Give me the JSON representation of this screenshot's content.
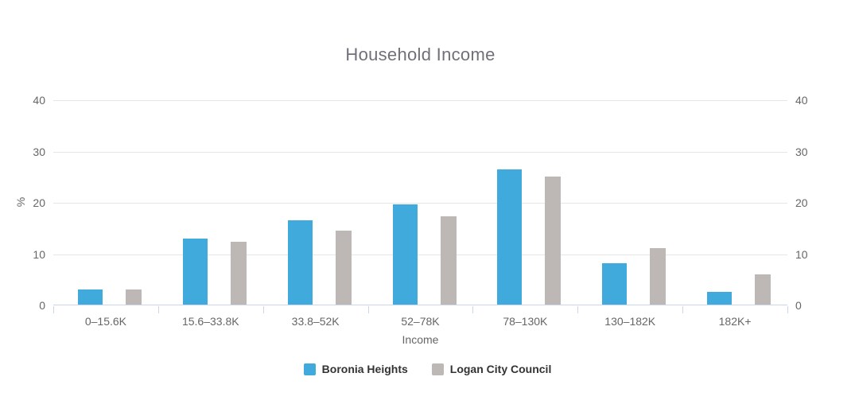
{
  "title": "Household Income",
  "colors": {
    "series_boronia": "#41AADC",
    "series_logan": "#BDB8B6",
    "gridline": "#e6e6e6",
    "axis_line": "#ccd6eb",
    "axis_label": "#666666",
    "title_text": "#707079",
    "legend_text": "#333333"
  },
  "chart_data": {
    "type": "bar",
    "title": "Household Income",
    "xlabel": "Income",
    "ylabel": "%",
    "ylim": [
      0,
      40
    ],
    "yticks": [
      0,
      10,
      20,
      30,
      40
    ],
    "grid": true,
    "legend_position": "bottom",
    "categories": [
      "0–15.6K",
      "15.6–33.8K",
      "33.8–52K",
      "52–78K",
      "78–130K",
      "130–182K",
      "182K+"
    ],
    "series": [
      {
        "name": "Boronia Heights",
        "color": "#41AADC",
        "values": [
          3.0,
          12.9,
          16.5,
          19.5,
          26.3,
          8.1,
          2.5
        ]
      },
      {
        "name": "Logan City Council",
        "color": "#BDB8B6",
        "values": [
          3.0,
          12.2,
          14.4,
          17.2,
          25.0,
          11.0,
          5.9
        ]
      }
    ]
  },
  "legend": {
    "items": [
      {
        "label": "Boronia Heights",
        "color": "#41AADC"
      },
      {
        "label": "Logan City Council",
        "color": "#BDB8B6"
      }
    ]
  }
}
